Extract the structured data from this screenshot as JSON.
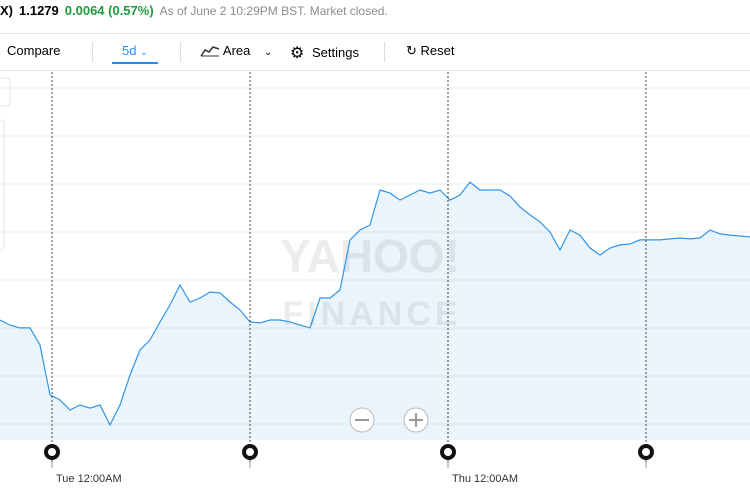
{
  "header": {
    "symbol": "X)",
    "price": "1.1279",
    "change": "0.0064 (0.57%)",
    "as_of": "As of June 2 10:29PM BST. Market closed."
  },
  "toolbar": {
    "compare": "Compare",
    "range": "5d",
    "chart_type": "Area",
    "settings": "Settings",
    "reset": "Reset"
  },
  "watermark": {
    "line1": "YAHOO!",
    "line2": "FINANCE"
  },
  "chart_data": {
    "type": "area",
    "color": "#2f95e8",
    "values": [
      1.12444,
      1.12423,
      1.12411,
      1.12411,
      1.1234,
      1.12132,
      1.12111,
      1.12069,
      1.1209,
      1.12077,
      1.1209,
      1.12007,
      1.1209,
      1.12215,
      1.12319,
      1.12361,
      1.12436,
      1.12507,
      1.1259,
      1.12519,
      1.12536,
      1.12561,
      1.12557,
      1.12519,
      1.12486,
      1.12436,
      1.12432,
      1.12444,
      1.12444,
      1.12436,
      1.12423,
      1.12411,
      1.12536,
      1.12536,
      1.12569,
      1.12778,
      1.12819,
      1.1284,
      1.12986,
      1.12973,
      1.12944,
      1.12965,
      1.12986,
      1.12973,
      1.12986,
      1.12944,
      1.12965,
      1.13019,
      1.12986,
      1.12986,
      1.12986,
      1.12961,
      1.12915,
      1.12882,
      1.12853,
      1.12811,
      1.12736,
      1.12819,
      1.12798,
      1.12744,
      1.12715,
      1.12744,
      1.12757,
      1.12761,
      1.12778,
      1.12778,
      1.12778,
      1.12782,
      1.12786,
      1.12782,
      1.12786,
      1.12819,
      1.12803,
      1.12798,
      1.12794,
      1.1279
    ],
    "ylim": [
      1.11944,
      1.13411
    ],
    "xtick_labels": [
      "Tue 12:00AM",
      null,
      "Thu 12:00AM",
      null
    ]
  }
}
